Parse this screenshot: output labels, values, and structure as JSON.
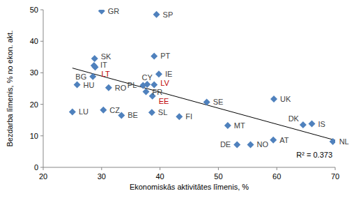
{
  "chart_data": {
    "type": "scatter",
    "x_label": "Ekonomiskās aktivitātes līmenis, %",
    "y_label": "Bezdarba līmenis, % no ekon. akt.",
    "labels": [
      "GR",
      "SP",
      "SK",
      "PT",
      "IT",
      "LT",
      "IE",
      "BG",
      "HU",
      "RO",
      "CY",
      "PL",
      "FR",
      "LV",
      "EE",
      "SE",
      "UK",
      "LU",
      "CZ",
      "BE",
      "SL",
      "FI",
      "MT",
      "DK",
      "IS",
      "DE",
      "NO",
      "AT",
      "NL"
    ],
    "x": [
      30,
      39.4,
      28.8,
      39,
      28.7,
      28.9,
      39.8,
      28.5,
      25.8,
      31.2,
      37.8,
      37.1,
      37.6,
      39,
      38.7,
      48,
      59.5,
      25,
      30.3,
      33.4,
      38.6,
      43.3,
      51.6,
      64.5,
      66,
      53.2,
      55.5,
      59.4,
      69.6
    ],
    "values": [
      49.6,
      48.5,
      34.5,
      35.3,
      32.3,
      31.8,
      29.6,
      28.8,
      26.2,
      25.3,
      26.3,
      26,
      24,
      26.2,
      22.6,
      20.7,
      21.7,
      17.6,
      18.2,
      16.5,
      17.4,
      16.1,
      13.3,
      13.5,
      13.8,
      7.2,
      7.2,
      8.7,
      8.2
    ],
    "color": "#4f81bd",
    "colors": [
      "#404040",
      "#404040",
      "#404040",
      "#404040",
      "#404040",
      "#c00000",
      "#404040",
      "#404040",
      "#404040",
      "#404040",
      "#404040",
      "#404040",
      "#404040",
      "#c00000",
      "#c00000",
      "#404040",
      "#404040",
      "#404040",
      "#404040",
      "#404040",
      "#404040",
      "#404040",
      "#404040",
      "#404040",
      "#404040",
      "#404040",
      "#404040",
      "#404040",
      "#404040"
    ],
    "marker": "diamond",
    "trend_line": {
      "x": [
        25,
        70
      ],
      "y": [
        31.5,
        8.6
      ]
    },
    "annotations": [
      "R² = 0.373"
    ],
    "xlim": [
      20,
      70
    ],
    "ylim": [
      0,
      50
    ],
    "xticks": [
      20,
      30,
      40,
      50,
      60,
      70
    ],
    "yticks": [
      0,
      10,
      20,
      30,
      40,
      50
    ],
    "grid": false
  }
}
